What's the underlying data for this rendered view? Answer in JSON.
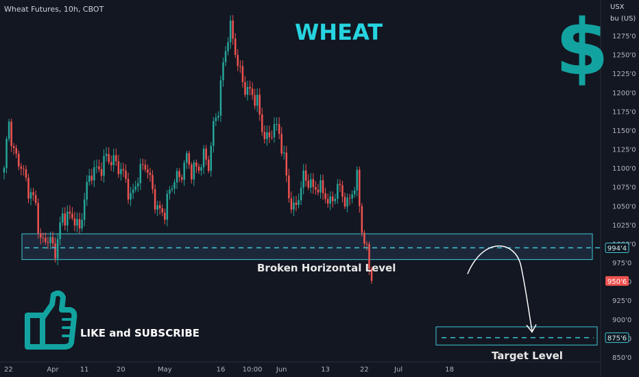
{
  "header": {
    "symbol": "Wheat Futures, 10h, CBOT"
  },
  "overlay": {
    "title": "WHEAT",
    "dollar": "$",
    "broken_label": "Broken Horizontal Level",
    "target_label": "Target Level",
    "cta": "LIKE and SUBSCRIBE"
  },
  "price_axis": {
    "currency": "USX",
    "unit": "bu (US)"
  },
  "colors": {
    "bg": "#131722",
    "up": "#26a69a",
    "down": "#ef5350",
    "accent": "#26d4e0",
    "text": "#b2b5be",
    "zone": "#1e2c3e"
  },
  "chart_data": {
    "type": "candlestick",
    "ylim": [
      845,
      1290
    ],
    "y_ticks": [
      {
        "v": 1275,
        "label": "1275'0"
      },
      {
        "v": 1250,
        "label": "1250'0"
      },
      {
        "v": 1225,
        "label": "1225'0"
      },
      {
        "v": 1200,
        "label": "1200'0"
      },
      {
        "v": 1175,
        "label": "1175'0"
      },
      {
        "v": 1150,
        "label": "1150'0"
      },
      {
        "v": 1125,
        "label": "1125'0"
      },
      {
        "v": 1100,
        "label": "1100'0"
      },
      {
        "v": 1075,
        "label": "1075'0"
      },
      {
        "v": 1050,
        "label": "1050'0"
      },
      {
        "v": 1025,
        "label": "1025'0"
      },
      {
        "v": 1000,
        "label": "1000'0"
      },
      {
        "v": 975,
        "label": "975'0"
      },
      {
        "v": 950,
        "label": "950'0"
      },
      {
        "v": 925,
        "label": "925'0"
      },
      {
        "v": 900,
        "label": "900'0"
      },
      {
        "v": 875,
        "label": "875'0"
      },
      {
        "v": 850,
        "label": "850'0"
      }
    ],
    "x_ticks": [
      {
        "i": 0,
        "label": "22"
      },
      {
        "i": 20,
        "label": "Apr"
      },
      {
        "i": 33,
        "label": "11"
      },
      {
        "i": 48,
        "label": "20"
      },
      {
        "i": 66,
        "label": "May"
      },
      {
        "i": 89,
        "label": "16"
      },
      {
        "i": 102,
        "label": "10:00"
      },
      {
        "i": 114,
        "label": "Jun"
      },
      {
        "i": 132,
        "label": "13"
      },
      {
        "i": 148,
        "label": "22"
      },
      {
        "i": 162,
        "label": "Jul"
      },
      {
        "i": 183,
        "label": "18"
      }
    ],
    "zone": {
      "top": 1013,
      "bottom": 979
    },
    "level": 994.5,
    "target": {
      "top": 890,
      "bottom": 866,
      "level": 875.75
    },
    "price_tags": [
      {
        "value": 994.5,
        "label": "994'4",
        "kind": "level"
      },
      {
        "value": 950.75,
        "label": "950'6",
        "kind": "last"
      },
      {
        "value": 875.75,
        "label": "875'6",
        "kind": "target"
      }
    ],
    "anchors": [
      [
        0,
        1100
      ],
      [
        2,
        1155
      ],
      [
        4,
        1120
      ],
      [
        7,
        1110
      ],
      [
        10,
        1070
      ],
      [
        13,
        1045
      ],
      [
        15,
        1000
      ],
      [
        18,
        1015
      ],
      [
        21,
        990
      ],
      [
        24,
        1030
      ],
      [
        29,
        1040
      ],
      [
        31,
        1020
      ],
      [
        33,
        1060
      ],
      [
        36,
        1090
      ],
      [
        39,
        1100
      ],
      [
        42,
        1120
      ],
      [
        46,
        1100
      ],
      [
        50,
        1085
      ],
      [
        52,
        1065
      ],
      [
        55,
        1090
      ],
      [
        58,
        1100
      ],
      [
        61,
        1070
      ],
      [
        63,
        1050
      ],
      [
        66,
        1045
      ],
      [
        68,
        1065
      ],
      [
        70,
        1080
      ],
      [
        72,
        1085
      ],
      [
        75,
        1120
      ],
      [
        77,
        1100
      ],
      [
        80,
        1095
      ],
      [
        82,
        1110
      ],
      [
        84,
        1105
      ],
      [
        86,
        1160
      ],
      [
        88,
        1185
      ],
      [
        90,
        1235
      ],
      [
        92,
        1270
      ],
      [
        93,
        1278
      ],
      [
        95,
        1255
      ],
      [
        96,
        1240
      ],
      [
        98,
        1220
      ],
      [
        100,
        1205
      ],
      [
        102,
        1195
      ],
      [
        104,
        1180
      ],
      [
        106,
        1150
      ],
      [
        108,
        1140
      ],
      [
        110,
        1155
      ],
      [
        111,
        1160
      ],
      [
        113,
        1145
      ],
      [
        115,
        1105
      ],
      [
        117,
        1060
      ],
      [
        119,
        1045
      ],
      [
        121,
        1070
      ],
      [
        123,
        1090
      ],
      [
        125,
        1080
      ],
      [
        127,
        1065
      ],
      [
        129,
        1075
      ],
      [
        132,
        1070
      ],
      [
        134,
        1055
      ],
      [
        137,
        1070
      ],
      [
        139,
        1060
      ],
      [
        141,
        1050
      ],
      [
        143,
        1075
      ],
      [
        145,
        1090
      ],
      [
        146,
        1055
      ],
      [
        147,
        1020
      ],
      [
        148,
        995
      ],
      [
        149,
        985
      ],
      [
        150,
        965
      ],
      [
        151,
        950.75
      ]
    ]
  }
}
